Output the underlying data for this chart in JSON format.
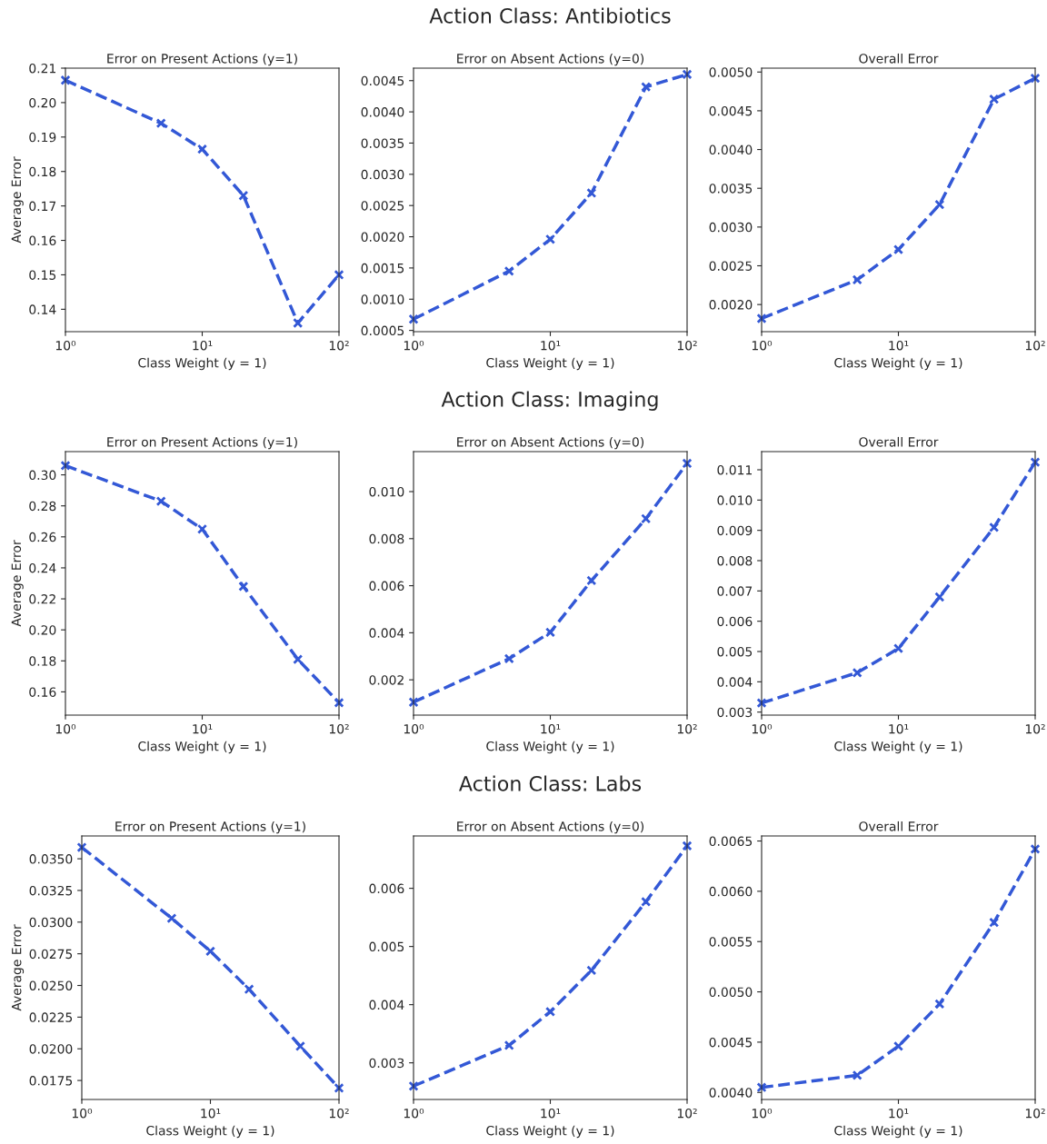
{
  "chart_data": [
    {
      "type": "line",
      "title": "Error on Present Actions (y=1)",
      "xlabel": "Class Weight (y = 1)",
      "ylabel": "Average Error",
      "log": "x",
      "marker": "cross",
      "line_style": "dashed",
      "grid": false,
      "x": [
        1,
        5,
        10,
        20,
        50,
        100
      ],
      "series": [
        {
          "color": "#3358d6",
          "values": [
            0.2065,
            0.194,
            0.1865,
            0.173,
            0.136,
            0.15
          ]
        }
      ],
      "xlim": [
        1,
        100
      ],
      "xticks": [
        {
          "value": 1,
          "label": "10⁰"
        },
        {
          "value": 10,
          "label": "10¹"
        },
        {
          "value": 100,
          "label": "10²"
        }
      ],
      "ylim": [
        0.1335,
        0.21
      ],
      "yticks": [
        {
          "value": 0.14,
          "label": "0.14"
        },
        {
          "value": 0.15,
          "label": "0.15"
        },
        {
          "value": 0.16,
          "label": "0.16"
        },
        {
          "value": 0.17,
          "label": "0.17"
        },
        {
          "value": 0.18,
          "label": "0.18"
        },
        {
          "value": 0.19,
          "label": "0.19"
        },
        {
          "value": 0.2,
          "label": "0.20"
        },
        {
          "value": 0.21,
          "label": "0.21"
        }
      ]
    },
    {
      "type": "line",
      "title": "Error on Absent Actions (y=0)",
      "xlabel": "Class Weight (y = 1)",
      "log": "x",
      "marker": "cross",
      "line_style": "dashed",
      "grid": false,
      "annotations": [
        "Action Class: Antibiotics"
      ],
      "x": [
        1,
        5,
        10,
        20,
        50,
        100
      ],
      "series": [
        {
          "color": "#3358d6",
          "values": [
            0.00068,
            0.00145,
            0.00196,
            0.0027,
            0.0044,
            0.0046
          ]
        }
      ],
      "xlim": [
        1,
        100
      ],
      "xticks": [
        {
          "value": 1,
          "label": "10⁰"
        },
        {
          "value": 10,
          "label": "10¹"
        },
        {
          "value": 100,
          "label": "10²"
        }
      ],
      "ylim": [
        0.00048,
        0.0047
      ],
      "yticks": [
        {
          "value": 0.0005,
          "label": "0.0005"
        },
        {
          "value": 0.001,
          "label": "0.0010"
        },
        {
          "value": 0.0015,
          "label": "0.0015"
        },
        {
          "value": 0.002,
          "label": "0.0020"
        },
        {
          "value": 0.0025,
          "label": "0.0025"
        },
        {
          "value": 0.003,
          "label": "0.0030"
        },
        {
          "value": 0.0035,
          "label": "0.0035"
        },
        {
          "value": 0.004,
          "label": "0.0040"
        },
        {
          "value": 0.0045,
          "label": "0.0045"
        }
      ]
    },
    {
      "type": "line",
      "title": "Overall Error",
      "xlabel": "Class Weight (y = 1)",
      "log": "x",
      "marker": "cross",
      "line_style": "dashed",
      "grid": false,
      "x": [
        1,
        5,
        10,
        20,
        50,
        100
      ],
      "series": [
        {
          "color": "#3358d6",
          "values": [
            0.00182,
            0.00232,
            0.00271,
            0.00329,
            0.00465,
            0.00492
          ]
        }
      ],
      "xlim": [
        1,
        100
      ],
      "xticks": [
        {
          "value": 1,
          "label": "10⁰"
        },
        {
          "value": 10,
          "label": "10¹"
        },
        {
          "value": 100,
          "label": "10²"
        }
      ],
      "ylim": [
        0.00165,
        0.00505
      ],
      "yticks": [
        {
          "value": 0.002,
          "label": "0.0020"
        },
        {
          "value": 0.0025,
          "label": "0.0025"
        },
        {
          "value": 0.003,
          "label": "0.0030"
        },
        {
          "value": 0.0035,
          "label": "0.0035"
        },
        {
          "value": 0.004,
          "label": "0.0040"
        },
        {
          "value": 0.0045,
          "label": "0.0045"
        },
        {
          "value": 0.005,
          "label": "0.0050"
        }
      ]
    },
    {
      "type": "line",
      "title": "Error on Present Actions (y=1)",
      "xlabel": "Class Weight (y = 1)",
      "ylabel": "Average Error",
      "log": "x",
      "marker": "cross",
      "line_style": "dashed",
      "grid": false,
      "x": [
        1,
        5,
        10,
        20,
        50,
        100
      ],
      "series": [
        {
          "color": "#3358d6",
          "values": [
            0.306,
            0.283,
            0.265,
            0.228,
            0.181,
            0.153
          ]
        }
      ],
      "xlim": [
        1,
        100
      ],
      "xticks": [
        {
          "value": 1,
          "label": "10⁰"
        },
        {
          "value": 10,
          "label": "10¹"
        },
        {
          "value": 100,
          "label": "10²"
        }
      ],
      "ylim": [
        0.145,
        0.315
      ],
      "yticks": [
        {
          "value": 0.16,
          "label": "0.16"
        },
        {
          "value": 0.18,
          "label": "0.18"
        },
        {
          "value": 0.2,
          "label": "0.20"
        },
        {
          "value": 0.22,
          "label": "0.22"
        },
        {
          "value": 0.24,
          "label": "0.24"
        },
        {
          "value": 0.26,
          "label": "0.26"
        },
        {
          "value": 0.28,
          "label": "0.28"
        },
        {
          "value": 0.3,
          "label": "0.30"
        }
      ]
    },
    {
      "type": "line",
      "title": "Error on Absent Actions (y=0)",
      "xlabel": "Class Weight (y = 1)",
      "log": "x",
      "marker": "cross",
      "line_style": "dashed",
      "grid": false,
      "annotations": [
        "Action Class: Imaging"
      ],
      "x": [
        1,
        5,
        10,
        20,
        50,
        100
      ],
      "series": [
        {
          "color": "#3358d6",
          "values": [
            0.00105,
            0.0029,
            0.00402,
            0.00622,
            0.00885,
            0.0112
          ]
        }
      ],
      "xlim": [
        1,
        100
      ],
      "xticks": [
        {
          "value": 1,
          "label": "10⁰"
        },
        {
          "value": 10,
          "label": "10¹"
        },
        {
          "value": 100,
          "label": "10²"
        }
      ],
      "ylim": [
        0.0005,
        0.0117
      ],
      "yticks": [
        {
          "value": 0.002,
          "label": "0.002"
        },
        {
          "value": 0.004,
          "label": "0.004"
        },
        {
          "value": 0.006,
          "label": "0.006"
        },
        {
          "value": 0.008,
          "label": "0.008"
        },
        {
          "value": 0.01,
          "label": "0.010"
        }
      ]
    },
    {
      "type": "line",
      "title": "Overall Error",
      "xlabel": "Class Weight (y = 1)",
      "log": "x",
      "marker": "cross",
      "line_style": "dashed",
      "grid": false,
      "x": [
        1,
        5,
        10,
        20,
        50,
        100
      ],
      "series": [
        {
          "color": "#3358d6",
          "values": [
            0.0033,
            0.0043,
            0.0051,
            0.0068,
            0.0091,
            0.01125
          ]
        }
      ],
      "xlim": [
        1,
        100
      ],
      "xticks": [
        {
          "value": 1,
          "label": "10⁰"
        },
        {
          "value": 10,
          "label": "10¹"
        },
        {
          "value": 100,
          "label": "10²"
        }
      ],
      "ylim": [
        0.0029,
        0.0116
      ],
      "yticks": [
        {
          "value": 0.003,
          "label": "0.003"
        },
        {
          "value": 0.004,
          "label": "0.004"
        },
        {
          "value": 0.005,
          "label": "0.005"
        },
        {
          "value": 0.006,
          "label": "0.006"
        },
        {
          "value": 0.007,
          "label": "0.007"
        },
        {
          "value": 0.008,
          "label": "0.008"
        },
        {
          "value": 0.009,
          "label": "0.009"
        },
        {
          "value": 0.01,
          "label": "0.010"
        },
        {
          "value": 0.011,
          "label": "0.011"
        }
      ]
    },
    {
      "type": "line",
      "title": "Error on Present Actions (y=1)",
      "xlabel": "Class Weight (y = 1)",
      "ylabel": "Average Error",
      "log": "x",
      "marker": "cross",
      "line_style": "dashed",
      "grid": false,
      "x": [
        1,
        5,
        10,
        20,
        50,
        100
      ],
      "series": [
        {
          "color": "#3358d6",
          "values": [
            0.0359,
            0.0303,
            0.0277,
            0.0247,
            0.0202,
            0.0169
          ]
        }
      ],
      "xlim": [
        1,
        100
      ],
      "xticks": [
        {
          "value": 1,
          "label": "10⁰"
        },
        {
          "value": 10,
          "label": "10¹"
        },
        {
          "value": 100,
          "label": "10²"
        }
      ],
      "ylim": [
        0.016,
        0.0368
      ],
      "yticks": [
        {
          "value": 0.0175,
          "label": "0.0175"
        },
        {
          "value": 0.02,
          "label": "0.0200"
        },
        {
          "value": 0.0225,
          "label": "0.0225"
        },
        {
          "value": 0.025,
          "label": "0.0250"
        },
        {
          "value": 0.0275,
          "label": "0.0275"
        },
        {
          "value": 0.03,
          "label": "0.0300"
        },
        {
          "value": 0.0325,
          "label": "0.0325"
        },
        {
          "value": 0.035,
          "label": "0.0350"
        }
      ]
    },
    {
      "type": "line",
      "title": "Error on Absent Actions (y=0)",
      "xlabel": "Class Weight (y = 1)",
      "log": "x",
      "marker": "cross",
      "line_style": "dashed",
      "grid": false,
      "annotations": [
        "Action Class: Labs"
      ],
      "x": [
        1,
        5,
        10,
        20,
        50,
        100
      ],
      "series": [
        {
          "color": "#3358d6",
          "values": [
            0.0026,
            0.0033,
            0.00388,
            0.00459,
            0.00577,
            0.00673
          ]
        }
      ],
      "xlim": [
        1,
        100
      ],
      "xticks": [
        {
          "value": 1,
          "label": "10⁰"
        },
        {
          "value": 10,
          "label": "10¹"
        },
        {
          "value": 100,
          "label": "10²"
        }
      ],
      "ylim": [
        0.00237,
        0.0069
      ],
      "yticks": [
        {
          "value": 0.003,
          "label": "0.003"
        },
        {
          "value": 0.004,
          "label": "0.004"
        },
        {
          "value": 0.005,
          "label": "0.005"
        },
        {
          "value": 0.006,
          "label": "0.006"
        }
      ]
    },
    {
      "type": "line",
      "title": "Overall Error",
      "xlabel": "Class Weight (y = 1)",
      "log": "x",
      "marker": "cross",
      "line_style": "dashed",
      "grid": false,
      "x": [
        1,
        5,
        10,
        20,
        50,
        100
      ],
      "series": [
        {
          "color": "#3358d6",
          "values": [
            0.00405,
            0.00417,
            0.00446,
            0.00488,
            0.00569,
            0.00642
          ]
        }
      ],
      "xlim": [
        1,
        100
      ],
      "xticks": [
        {
          "value": 1,
          "label": "10⁰"
        },
        {
          "value": 10,
          "label": "10¹"
        },
        {
          "value": 100,
          "label": "10²"
        }
      ],
      "ylim": [
        0.00393,
        0.00655
      ],
      "yticks": [
        {
          "value": 0.004,
          "label": "0.0040"
        },
        {
          "value": 0.0045,
          "label": "0.0045"
        },
        {
          "value": 0.005,
          "label": "0.0050"
        },
        {
          "value": 0.0055,
          "label": "0.0055"
        },
        {
          "value": 0.006,
          "label": "0.0060"
        },
        {
          "value": 0.0065,
          "label": "0.0065"
        }
      ]
    }
  ]
}
